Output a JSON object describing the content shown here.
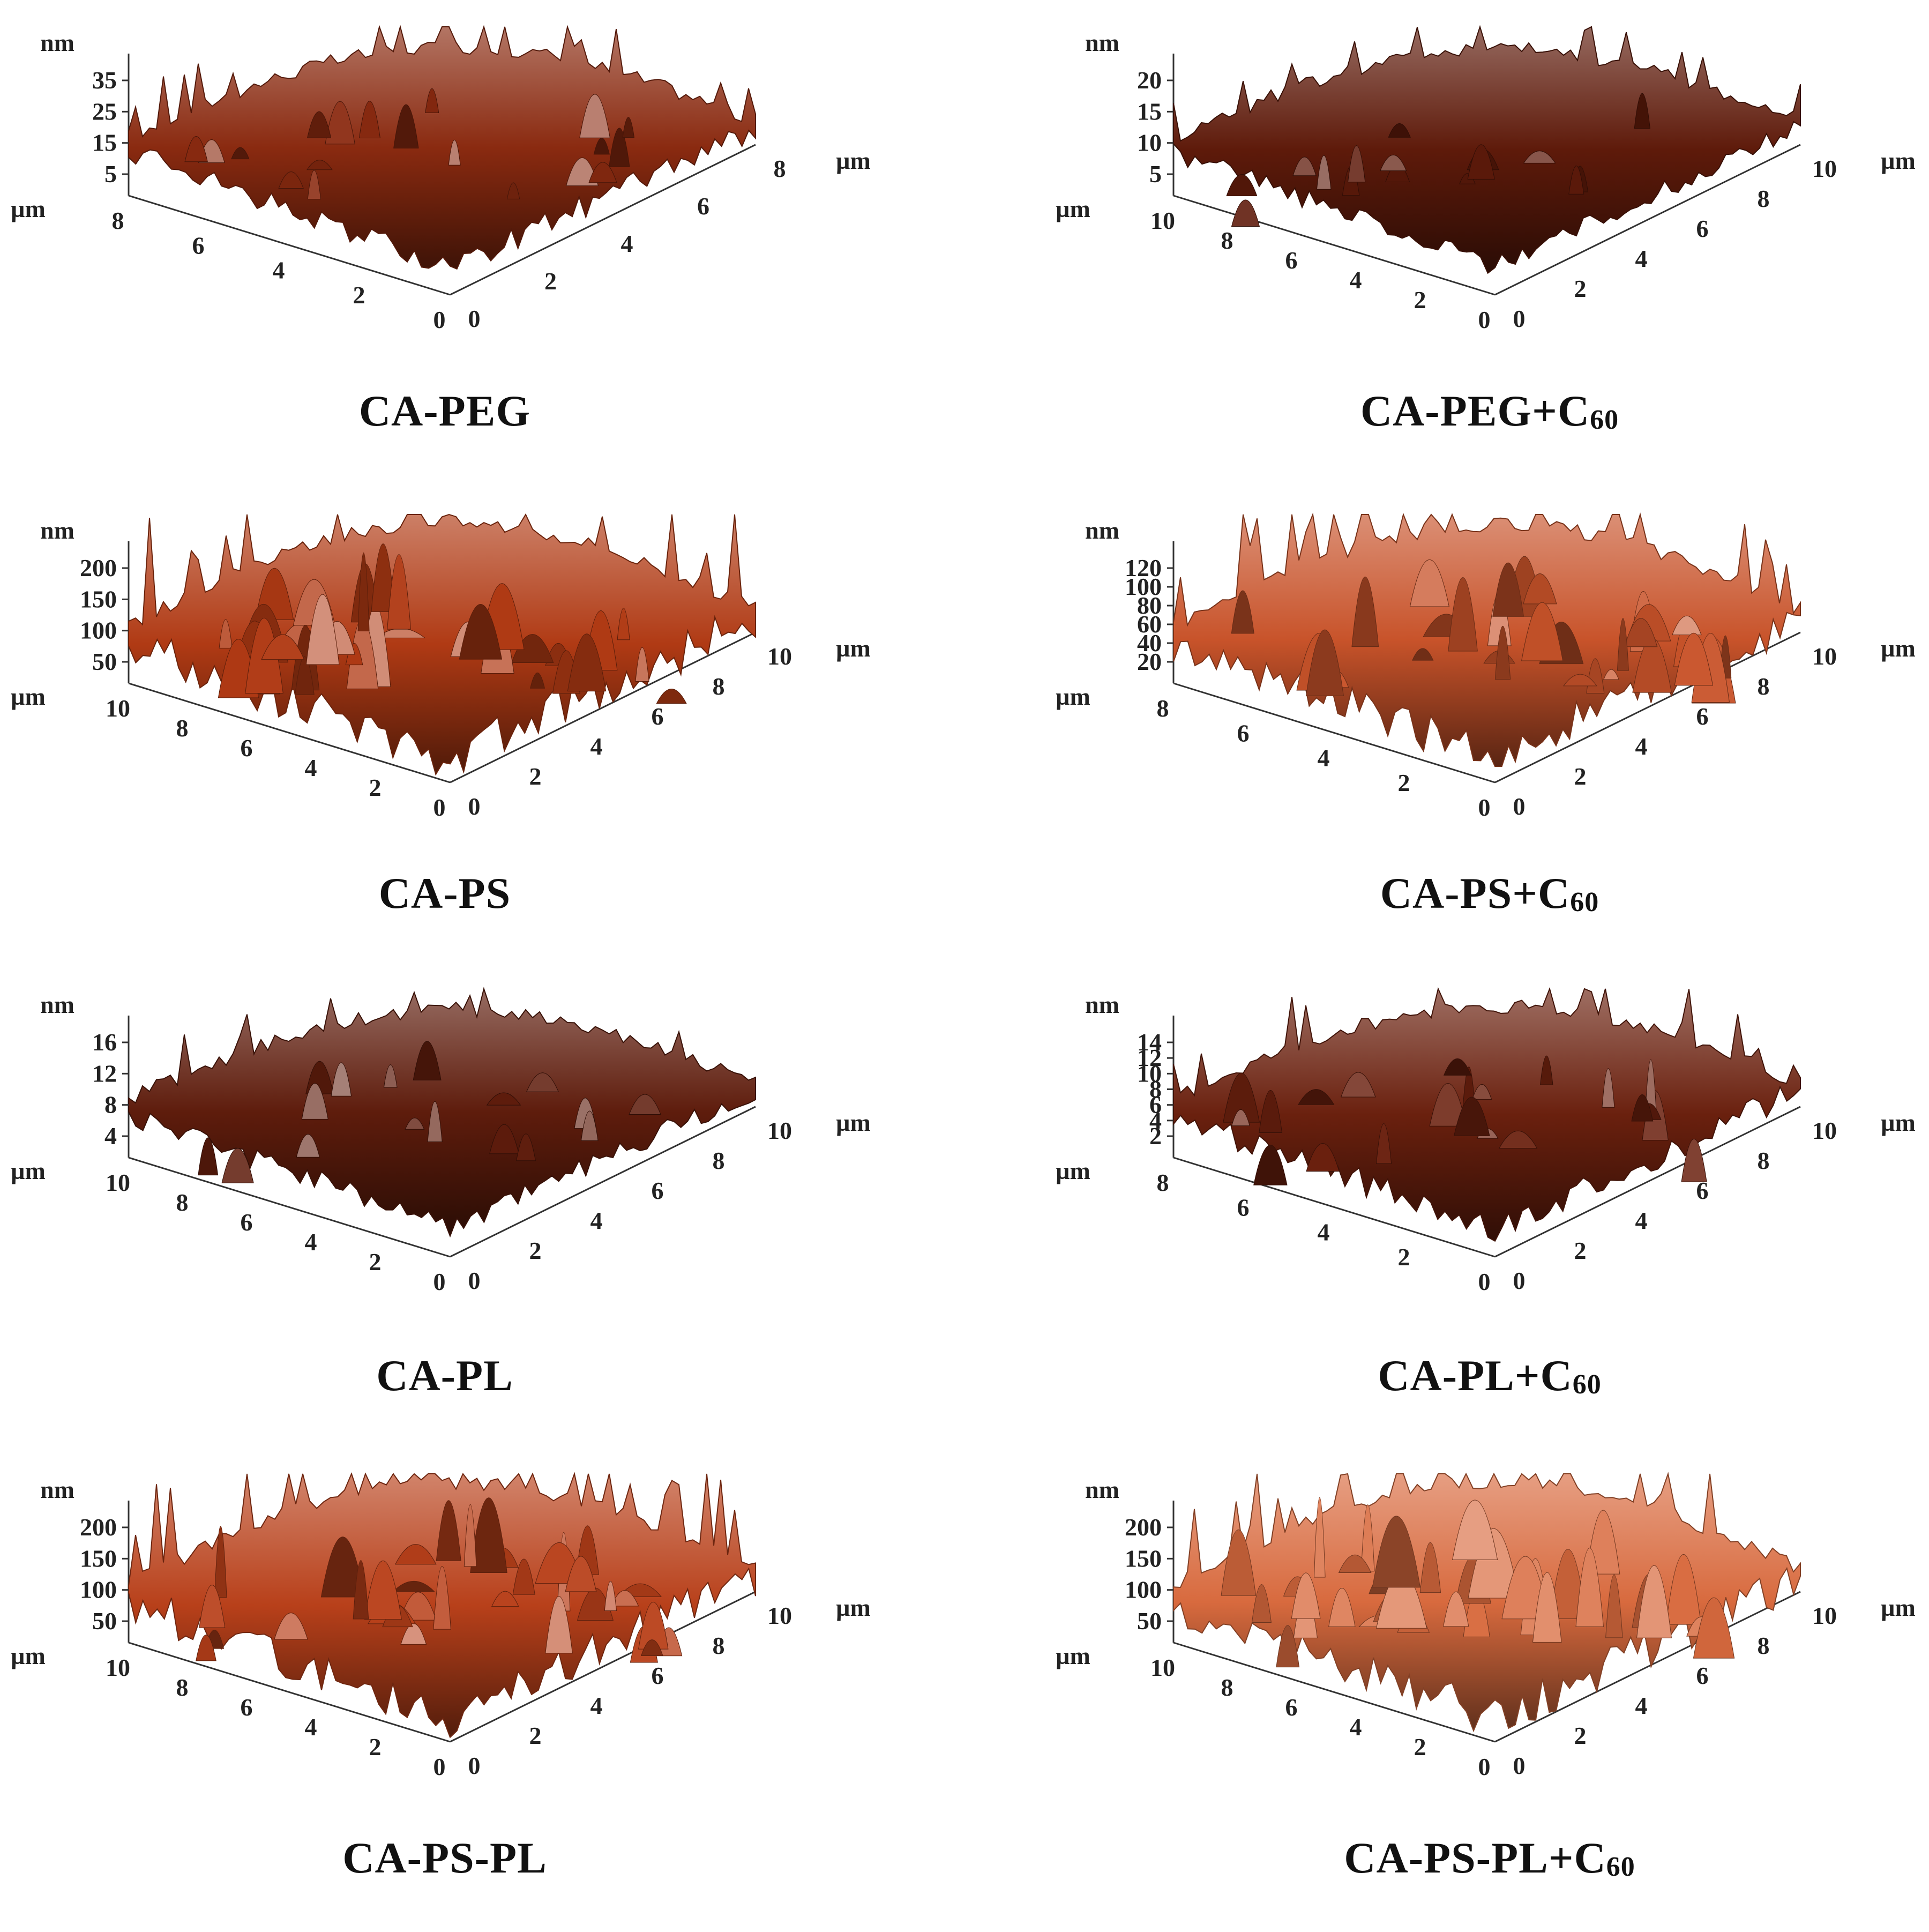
{
  "figure": {
    "panels": [
      {
        "id": "ca-peg",
        "caption_main": "CA-PEG",
        "caption_sub": "",
        "z_unit": "nm",
        "xy_unit": "µm",
        "z_ticks": [
          "35",
          "25",
          "15",
          "5"
        ],
        "left_ticks": [
          "8",
          "6",
          "4",
          "2",
          "0"
        ],
        "right_ticks": [
          "0",
          "2",
          "4",
          "6",
          "8"
        ],
        "surface_color": "#8a2a10",
        "roughness": 0.35
      },
      {
        "id": "ca-peg-c60",
        "caption_main": "CA-PEG+C",
        "caption_sub": "60",
        "z_unit": "nm",
        "xy_unit": "µm",
        "z_ticks": [
          "20",
          "15",
          "10",
          "5"
        ],
        "left_ticks": [
          "10",
          "8",
          "6",
          "4",
          "2",
          "0"
        ],
        "right_ticks": [
          "0",
          "2",
          "4",
          "6",
          "8",
          "10"
        ],
        "surface_color": "#5e1a0a",
        "roughness": 0.25
      },
      {
        "id": "ca-ps",
        "caption_main": "CA-PS",
        "caption_sub": "",
        "z_unit": "nm",
        "xy_unit": "µm",
        "z_ticks": [
          "200",
          "150",
          "100",
          "50"
        ],
        "left_ticks": [
          "10",
          "8",
          "6",
          "4",
          "2",
          "0"
        ],
        "right_ticks": [
          "0",
          "2",
          "4",
          "6",
          "8",
          "10"
        ],
        "surface_color": "#b03a14",
        "roughness": 0.9
      },
      {
        "id": "ca-ps-c60",
        "caption_main": "CA-PS+C",
        "caption_sub": "60",
        "z_unit": "nm",
        "xy_unit": "µm",
        "z_ticks": [
          "120",
          "100",
          "80",
          "60",
          "40",
          "20"
        ],
        "left_ticks": [
          "8",
          "6",
          "4",
          "2",
          "0"
        ],
        "right_ticks": [
          "0",
          "2",
          "4",
          "6",
          "8",
          "10"
        ],
        "surface_color": "#c8532a",
        "roughness": 0.8
      },
      {
        "id": "ca-pl",
        "caption_main": "CA-PL",
        "caption_sub": "",
        "z_unit": "nm",
        "xy_unit": "µm",
        "z_ticks": [
          "16",
          "12",
          "8",
          "4"
        ],
        "left_ticks": [
          "10",
          "8",
          "6",
          "4",
          "2",
          "0"
        ],
        "right_ticks": [
          "0",
          "2",
          "4",
          "6",
          "8",
          "10"
        ],
        "surface_color": "#5e1c0c",
        "roughness": 0.3
      },
      {
        "id": "ca-pl-c60",
        "caption_main": "CA-PL+C",
        "caption_sub": "60",
        "z_unit": "nm",
        "xy_unit": "µm",
        "z_ticks": [
          "14",
          "12",
          "10",
          "8",
          "6",
          "4",
          "2"
        ],
        "left_ticks": [
          "8",
          "6",
          "4",
          "2",
          "0"
        ],
        "right_ticks": [
          "0",
          "2",
          "4",
          "6",
          "8",
          "10"
        ],
        "surface_color": "#6a200e",
        "roughness": 0.45
      },
      {
        "id": "ca-ps-pl",
        "caption_main": "CA-PS-PL",
        "caption_sub": "",
        "z_unit": "nm",
        "xy_unit": "µm",
        "z_ticks": [
          "200",
          "150",
          "100",
          "50"
        ],
        "left_ticks": [
          "10",
          "8",
          "6",
          "4",
          "2",
          "0"
        ],
        "right_ticks": [
          "0",
          "2",
          "4",
          "6",
          "8",
          "10"
        ],
        "surface_color": "#b8401a",
        "roughness": 0.85
      },
      {
        "id": "ca-ps-pl-c60",
        "caption_main": "CA-PS-PL+C",
        "caption_sub": "60",
        "z_unit": "nm",
        "xy_unit": "µm",
        "z_ticks": [
          "200",
          "150",
          "100",
          "50"
        ],
        "left_ticks": [
          "10",
          "8",
          "6",
          "4",
          "2",
          "0"
        ],
        "right_ticks": [
          "0",
          "2",
          "4",
          "6",
          "8",
          "10"
        ],
        "surface_color": "#d86a3e",
        "roughness": 0.9
      }
    ]
  }
}
